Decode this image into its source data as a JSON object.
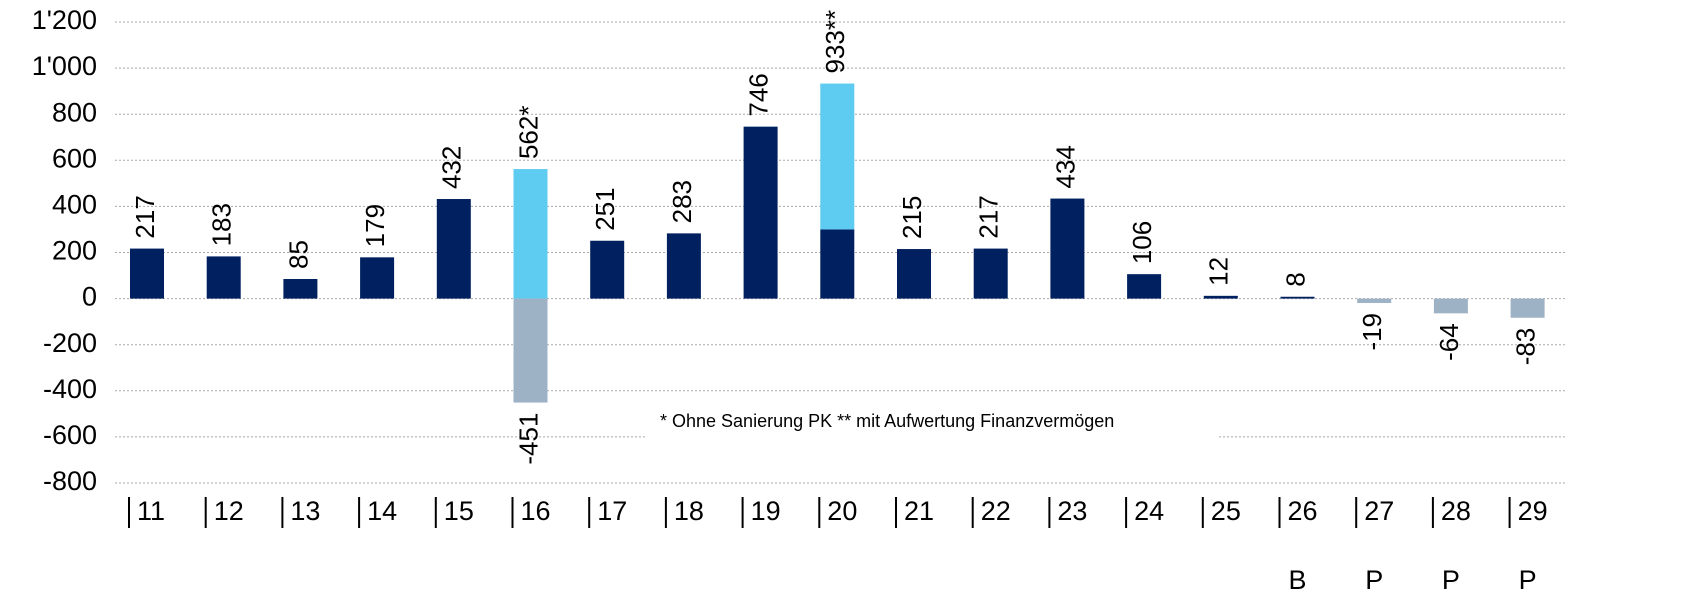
{
  "chart_data": {
    "type": "bar",
    "stacked": true,
    "categories": [
      "11",
      "12",
      "13",
      "14",
      "15",
      "16",
      "17",
      "18",
      "19",
      "20",
      "21",
      "22",
      "23",
      "24",
      "25",
      "26",
      "27",
      "28",
      "29"
    ],
    "category_sublabels": [
      null,
      null,
      null,
      null,
      null,
      null,
      null,
      null,
      null,
      null,
      null,
      null,
      null,
      null,
      null,
      "B",
      "P",
      "P",
      "P"
    ],
    "series": [
      {
        "color": "#00205f",
        "values": [
          217,
          183,
          85,
          179,
          432,
          null,
          251,
          283,
          746,
          300,
          215,
          217,
          434,
          106,
          12,
          8,
          null,
          null,
          null
        ]
      },
      {
        "color": "#5ecbf0",
        "values": [
          null,
          null,
          null,
          null,
          null,
          562,
          null,
          null,
          null,
          633,
          null,
          null,
          null,
          null,
          null,
          null,
          null,
          null,
          null
        ]
      },
      {
        "color": "#9db2c5",
        "values": [
          null,
          null,
          null,
          null,
          null,
          -451,
          null,
          null,
          null,
          null,
          null,
          null,
          null,
          null,
          null,
          null,
          -19,
          -64,
          -83
        ],
        "value_labels": [
          null,
          null,
          null,
          null,
          null,
          "-451",
          null,
          null,
          null,
          null,
          null,
          null,
          null,
          null,
          null,
          null,
          "-19",
          "-64",
          "-83"
        ]
      }
    ],
    "totals": {
      "values": [
        217,
        183,
        85,
        179,
        432,
        562,
        251,
        283,
        746,
        933,
        215,
        217,
        434,
        106,
        12,
        8,
        null,
        null,
        null
      ],
      "value_labels": [
        "217",
        "183",
        "85",
        "179",
        "432",
        "562*",
        "251",
        "283",
        "746",
        "933**",
        "215",
        "217",
        "434",
        "106",
        "12",
        "8",
        null,
        null,
        null
      ]
    },
    "annotation": "* Ohne Sanierung PK ** mit Aufwertung Finanzvermögen",
    "ylim": [
      -800,
      1200
    ],
    "yticks": [
      {
        "value": 1200,
        "label": "1'200"
      },
      {
        "value": 1000,
        "label": "1'000"
      },
      800,
      600,
      400,
      200,
      0,
      -200,
      -400,
      -600,
      -800
    ],
    "grid": true
  }
}
